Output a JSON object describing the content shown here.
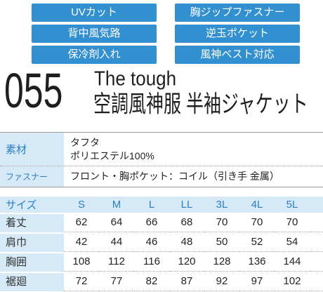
{
  "features": [
    "UVカット",
    "胸ジップファスナー",
    "背中風気路",
    "逆玉ポケット",
    "保冷剤入れ",
    "風神ベスト対応"
  ],
  "product": {
    "number": "055",
    "series": "The tough",
    "name": "空調風神服 半袖ジャケット"
  },
  "specs": {
    "material_label": "素材",
    "material_lines": [
      "タフタ",
      "ポリエステル100%"
    ],
    "fastener_label": "ファスナー",
    "fastener_value": "フロント・胸ポケット：コイル（引き手 金属）"
  },
  "size_table": {
    "header_label": "サイズ",
    "sizes": [
      "S",
      "M",
      "L",
      "LL",
      "3L",
      "4L",
      "5L"
    ],
    "rows": [
      {
        "label": "着丈",
        "values": [
          "62",
          "64",
          "66",
          "68",
          "70",
          "70",
          "70"
        ]
      },
      {
        "label": "肩巾",
        "values": [
          "42",
          "44",
          "46",
          "48",
          "50",
          "52",
          "54"
        ]
      },
      {
        "label": "胸囲",
        "values": [
          "108",
          "112",
          "116",
          "120",
          "128",
          "136",
          "144"
        ]
      },
      {
        "label": "裾廻",
        "values": [
          "72",
          "77",
          "82",
          "87",
          "92",
          "97",
          "102"
        ]
      }
    ]
  },
  "colors": {
    "accent": "#3390d0",
    "label_bg": "#d5eaf6",
    "label_text": "#2c7fc3"
  }
}
